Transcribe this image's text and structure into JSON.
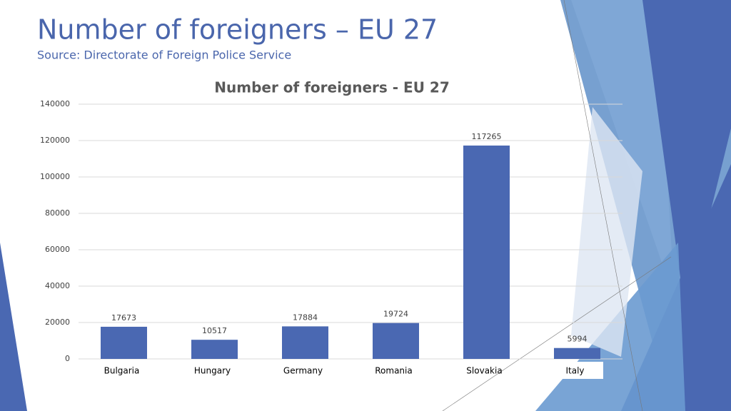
{
  "slide": {
    "title": "Number of foreigners – EU 27",
    "subtitle": "Source: Directorate of Foreign Police Service"
  },
  "chart_data": {
    "type": "bar",
    "title": "Number of foreigners - EU 27",
    "categories": [
      "Bulgaria",
      "Hungary",
      "Germany",
      "Romania",
      "Slovakia",
      "Italy"
    ],
    "values": [
      17673,
      10517,
      17884,
      19724,
      117265,
      5994
    ],
    "color": "#4a68b2",
    "ylim": [
      0,
      140000
    ],
    "yticks": [
      0,
      20000,
      40000,
      60000,
      80000,
      100000,
      120000,
      140000
    ],
    "grid": true
  }
}
